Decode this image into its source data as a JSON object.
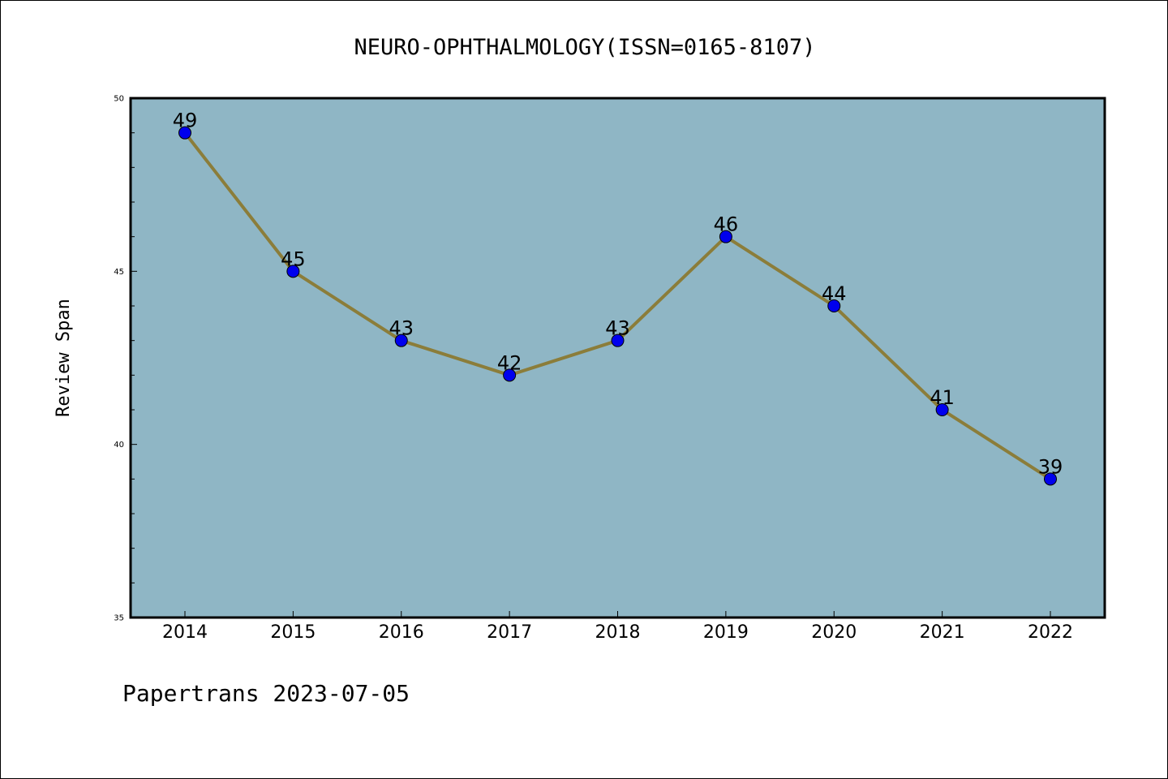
{
  "chart_data": {
    "type": "line",
    "title": "NEURO-OPHTHALMOLOGY(ISSN=0165-8107)",
    "xlabel": "",
    "ylabel": "Review Span",
    "x": [
      "2014",
      "2015",
      "2016",
      "2017",
      "2018",
      "2019",
      "2020",
      "2021",
      "2022"
    ],
    "series": [
      {
        "values": [
          49,
          45,
          43,
          42,
          43,
          46,
          44,
          41,
          39
        ]
      }
    ],
    "ylim": [
      35,
      50
    ],
    "yticks": [
      "35",
      "40",
      "45",
      "50"
    ],
    "grid": false,
    "colors": {
      "plot_background": "#8fb6c5",
      "line": "#8b7d3a",
      "marker": "#0000ee"
    }
  },
  "footer": "Papertrans 2023-07-05"
}
